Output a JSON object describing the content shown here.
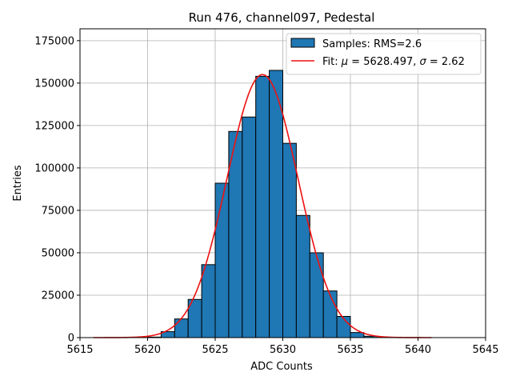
{
  "chart_data": {
    "type": "bar",
    "title": "Run 476, channel097, Pedestal",
    "xlabel": "ADC Counts",
    "ylabel": "Entries",
    "xlim": [
      5615,
      5645
    ],
    "ylim": [
      0,
      182000
    ],
    "xticks": [
      5615,
      5620,
      5625,
      5630,
      5635,
      5640,
      5645
    ],
    "yticks": [
      0,
      25000,
      50000,
      75000,
      100000,
      125000,
      150000,
      175000
    ],
    "grid": true,
    "legend_position": "top-right",
    "histogram": {
      "label": "Samples: RMS=2.6",
      "color": "#1f77b4",
      "bin_edges": [
        5616,
        5617,
        5618,
        5619,
        5620,
        5621,
        5622,
        5623,
        5624,
        5625,
        5626,
        5627,
        5628,
        5629,
        5630,
        5631,
        5632,
        5633,
        5634,
        5635,
        5636,
        5637,
        5638,
        5639,
        5640,
        5641
      ],
      "counts": [
        0,
        0,
        0,
        0,
        300,
        3500,
        11000,
        22500,
        43000,
        91000,
        121500,
        130000,
        154000,
        157500,
        114500,
        72000,
        50000,
        27500,
        12500,
        3000,
        800,
        100,
        0,
        0,
        0
      ]
    },
    "fit": {
      "label_prefix": "Fit: ",
      "label_mu": "μ",
      "label_mid": " = 5628.497, ",
      "label_sigma": "σ",
      "label_suffix": " = 2.62",
      "color": "#ee1111",
      "mu": 5628.497,
      "sigma": 2.62,
      "amplitude": 155000,
      "x_range": [
        5616,
        5641
      ]
    }
  }
}
